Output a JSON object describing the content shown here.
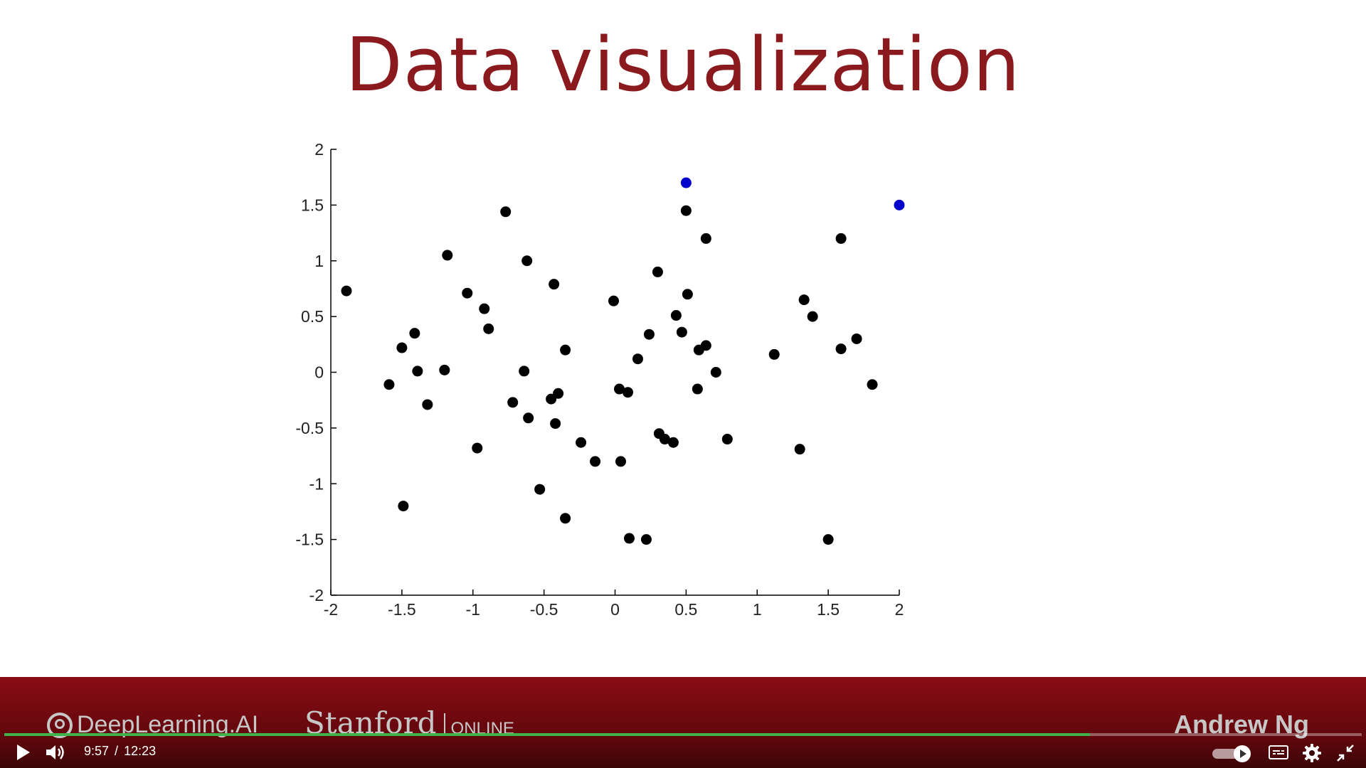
{
  "slide": {
    "title": "Data visualization"
  },
  "chart_data": {
    "type": "scatter",
    "title": "",
    "xlabel": "",
    "ylabel": "",
    "xlim": [
      -2,
      2
    ],
    "ylim": [
      -2,
      2
    ],
    "xticks": [
      "-2",
      "-1.5",
      "-1",
      "-0.5",
      "0",
      "0.5",
      "1",
      "1.5",
      "2"
    ],
    "yticks": [
      "2",
      "1.5",
      "1",
      "0.5",
      "0",
      "-0.5",
      "-1",
      "-1.5",
      "-2"
    ],
    "grid": false,
    "legend": "none",
    "series": [
      {
        "color": "#000000",
        "points": [
          [
            -1.89,
            0.73
          ],
          [
            -1.59,
            -0.11
          ],
          [
            -1.5,
            0.22
          ],
          [
            -1.49,
            -1.2
          ],
          [
            -1.41,
            0.35
          ],
          [
            -1.39,
            0.01
          ],
          [
            -1.32,
            -0.29
          ],
          [
            -1.2,
            0.02
          ],
          [
            -1.18,
            1.05
          ],
          [
            -1.04,
            0.71
          ],
          [
            -0.97,
            -0.68
          ],
          [
            -0.92,
            0.57
          ],
          [
            -0.89,
            0.39
          ],
          [
            -0.77,
            1.44
          ],
          [
            -0.72,
            -0.27
          ],
          [
            -0.64,
            0.01
          ],
          [
            -0.62,
            1.0
          ],
          [
            -0.61,
            -0.41
          ],
          [
            -0.53,
            -1.05
          ],
          [
            -0.45,
            -0.24
          ],
          [
            -0.43,
            0.79
          ],
          [
            -0.42,
            -0.46
          ],
          [
            -0.4,
            -0.19
          ],
          [
            -0.35,
            0.2
          ],
          [
            -0.35,
            -1.31
          ],
          [
            -0.24,
            -0.63
          ],
          [
            -0.14,
            -0.8
          ],
          [
            -0.01,
            0.64
          ],
          [
            0.03,
            -0.15
          ],
          [
            0.04,
            -0.8
          ],
          [
            0.09,
            -0.18
          ],
          [
            0.1,
            -1.49
          ],
          [
            0.16,
            0.12
          ],
          [
            0.22,
            -1.5
          ],
          [
            0.24,
            0.34
          ],
          [
            0.3,
            0.9
          ],
          [
            0.31,
            -0.55
          ],
          [
            0.35,
            -0.6
          ],
          [
            0.41,
            -0.63
          ],
          [
            0.43,
            0.51
          ],
          [
            0.47,
            0.36
          ],
          [
            0.5,
            1.45
          ],
          [
            0.51,
            0.7
          ],
          [
            0.58,
            -0.15
          ],
          [
            0.59,
            0.2
          ],
          [
            0.64,
            0.24
          ],
          [
            0.64,
            1.2
          ],
          [
            0.71,
            0.0
          ],
          [
            0.79,
            -0.6
          ],
          [
            1.12,
            0.16
          ],
          [
            1.3,
            -0.69
          ],
          [
            1.33,
            0.65
          ],
          [
            1.39,
            0.5
          ],
          [
            1.5,
            -1.5
          ],
          [
            1.59,
            0.21
          ],
          [
            1.59,
            1.2
          ],
          [
            1.7,
            0.3
          ],
          [
            1.81,
            -0.11
          ]
        ]
      },
      {
        "color": "#0000cc",
        "points": [
          [
            0.5,
            1.7
          ],
          [
            2.0,
            1.5
          ]
        ]
      }
    ]
  },
  "footer": {
    "brand_left": "DeepLearning.AI",
    "brand_stanford": "Stanford",
    "brand_online": "ONLINE",
    "speaker": "Andrew Ng"
  },
  "player": {
    "progress_fraction": 0.8,
    "current_time": "9:57",
    "separator": "/",
    "duration": "12:23",
    "progress_color": "#3fb24a",
    "icons": [
      "play-icon",
      "volume-icon",
      "autoplay-icon",
      "captions-icon",
      "settings-icon",
      "exit-fullscreen-icon"
    ]
  }
}
